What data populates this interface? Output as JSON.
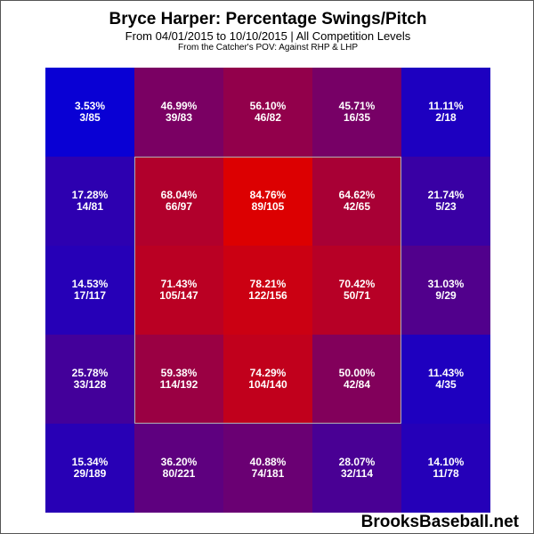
{
  "title": "Bryce Harper: Percentage Swings/Pitch",
  "subtitle": "From 04/01/2015 to 10/10/2015 | All Competition Levels",
  "subsubtitle": "From the Catcher's POV:   Against RHP & LHP",
  "watermark": "BrooksBaseball.net",
  "colors": {
    "low": "#0000dd",
    "high": "#dd0000",
    "zone_border": "#b0b0b0"
  },
  "chart_data": {
    "type": "heatmap",
    "rows": 5,
    "cols": 5,
    "strike_zone": {
      "row_start": 1,
      "row_end": 3,
      "col_start": 1,
      "col_end": 3
    },
    "cells": [
      [
        {
          "pct": "3.53%",
          "value": 3.53,
          "count": "3/85"
        },
        {
          "pct": "46.99%",
          "value": 46.99,
          "count": "39/83"
        },
        {
          "pct": "56.10%",
          "value": 56.1,
          "count": "46/82"
        },
        {
          "pct": "45.71%",
          "value": 45.71,
          "count": "16/35"
        },
        {
          "pct": "11.11%",
          "value": 11.11,
          "count": "2/18"
        }
      ],
      [
        {
          "pct": "17.28%",
          "value": 17.28,
          "count": "14/81"
        },
        {
          "pct": "68.04%",
          "value": 68.04,
          "count": "66/97"
        },
        {
          "pct": "84.76%",
          "value": 84.76,
          "count": "89/105"
        },
        {
          "pct": "64.62%",
          "value": 64.62,
          "count": "42/65"
        },
        {
          "pct": "21.74%",
          "value": 21.74,
          "count": "5/23"
        }
      ],
      [
        {
          "pct": "14.53%",
          "value": 14.53,
          "count": "17/117"
        },
        {
          "pct": "71.43%",
          "value": 71.43,
          "count": "105/147"
        },
        {
          "pct": "78.21%",
          "value": 78.21,
          "count": "122/156"
        },
        {
          "pct": "70.42%",
          "value": 70.42,
          "count": "50/71"
        },
        {
          "pct": "31.03%",
          "value": 31.03,
          "count": "9/29"
        }
      ],
      [
        {
          "pct": "25.78%",
          "value": 25.78,
          "count": "33/128"
        },
        {
          "pct": "59.38%",
          "value": 59.38,
          "count": "114/192"
        },
        {
          "pct": "74.29%",
          "value": 74.29,
          "count": "104/140"
        },
        {
          "pct": "50.00%",
          "value": 50.0,
          "count": "42/84"
        },
        {
          "pct": "11.43%",
          "value": 11.43,
          "count": "4/35"
        }
      ],
      [
        {
          "pct": "15.34%",
          "value": 15.34,
          "count": "29/189"
        },
        {
          "pct": "36.20%",
          "value": 36.2,
          "count": "80/221"
        },
        {
          "pct": "40.88%",
          "value": 40.88,
          "count": "74/181"
        },
        {
          "pct": "28.07%",
          "value": 28.07,
          "count": "32/114"
        },
        {
          "pct": "14.10%",
          "value": 14.1,
          "count": "11/78"
        }
      ]
    ]
  }
}
